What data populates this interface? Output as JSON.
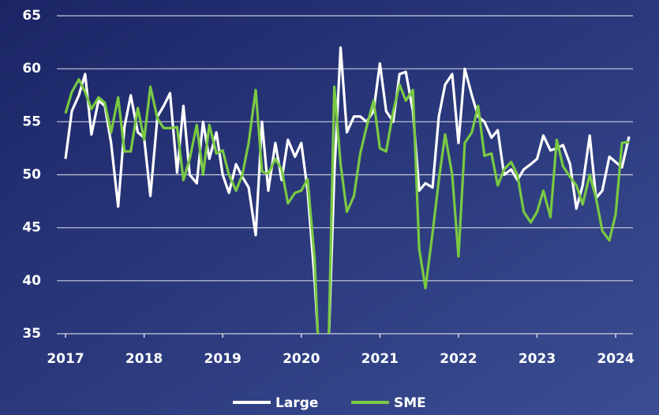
{
  "chart_data": {
    "type": "line",
    "x": [
      2017,
      2017.08,
      2017.17,
      2017.25,
      2017.33,
      2017.42,
      2017.5,
      2017.58,
      2017.67,
      2017.75,
      2017.83,
      2017.92,
      2018,
      2018.08,
      2018.17,
      2018.25,
      2018.33,
      2018.42,
      2018.5,
      2018.58,
      2018.67,
      2018.75,
      2018.83,
      2018.92,
      2019,
      2019.08,
      2019.17,
      2019.25,
      2019.33,
      2019.42,
      2019.5,
      2019.58,
      2019.67,
      2019.75,
      2019.83,
      2019.92,
      2020,
      2020.08,
      2020.17,
      2020.25,
      2020.33,
      2020.42,
      2020.5,
      2020.58,
      2020.67,
      2020.75,
      2020.83,
      2020.92,
      2021,
      2021.08,
      2021.17,
      2021.25,
      2021.33,
      2021.42,
      2021.5,
      2021.58,
      2021.67,
      2021.75,
      2021.83,
      2021.92,
      2022,
      2022.08,
      2022.17,
      2022.25,
      2022.33,
      2022.42,
      2022.5,
      2022.58,
      2022.67,
      2022.75,
      2022.83,
      2022.92,
      2023,
      2023.08,
      2023.17,
      2023.25,
      2023.33,
      2023.42,
      2023.5,
      2023.58,
      2023.67,
      2023.75,
      2023.83,
      2023.92,
      2024,
      2024.08,
      2024.17
    ],
    "series": [
      {
        "name": "Large",
        "color": "#ffffff",
        "values": [
          51.5,
          56,
          57.5,
          59.5,
          53.8,
          57,
          56.5,
          53,
          47,
          54.5,
          57.5,
          54,
          53.5,
          48,
          55.5,
          56.5,
          57.7,
          50.2,
          56.5,
          50,
          49.2,
          55,
          51.5,
          54,
          50,
          48.3,
          51,
          49.8,
          48.8,
          44.3,
          55,
          48.5,
          53,
          49.5,
          53.3,
          51.7,
          53,
          48.5,
          40,
          30,
          30,
          50,
          62,
          54,
          55.5,
          55.5,
          55,
          56,
          60.5,
          56,
          55,
          59.5,
          59.7,
          56,
          48.5,
          49.2,
          48.8,
          55.5,
          58.5,
          59.5,
          53,
          60,
          57.5,
          55.5,
          55,
          53.5,
          54.2,
          50,
          50.5,
          49.5,
          50.5,
          51,
          51.5,
          53.7,
          52.3,
          52.5,
          52.8,
          51,
          46.8,
          49,
          53.7,
          47.8,
          48.5,
          51.7,
          51.2,
          50.7,
          53.6
        ]
      },
      {
        "name": "SME",
        "color": "#7ac943",
        "values": [
          55.8,
          57.8,
          59,
          57.8,
          56.2,
          57.3,
          56.8,
          54,
          57.3,
          52.2,
          52.2,
          56.3,
          53.3,
          58.3,
          55.3,
          54.4,
          54.4,
          54.5,
          49.5,
          51.5,
          54.7,
          50,
          54.7,
          52,
          52.3,
          50,
          48.5,
          50,
          53,
          58,
          50.3,
          50.1,
          51.5,
          50.5,
          47.3,
          48.3,
          48.5,
          49.6,
          42,
          28,
          28,
          58.3,
          51,
          46.5,
          48,
          52,
          54.5,
          57,
          52.5,
          52.2,
          56,
          58.5,
          57,
          58,
          43,
          39.3,
          44.5,
          49.5,
          53.8,
          50,
          42.3,
          53,
          54,
          56.5,
          51.8,
          52,
          49,
          50.5,
          51.2,
          50,
          46.5,
          45.5,
          46.5,
          48.5,
          46,
          53.3,
          50.8,
          49.8,
          49,
          47.2,
          50,
          47.8,
          44.7,
          43.8,
          46.3,
          53,
          53.1
        ]
      }
    ],
    "xlim": [
      2017,
      2024.25
    ],
    "xticks": [
      2017,
      2018,
      2019,
      2020,
      2021,
      2022,
      2023,
      2024
    ],
    "ylim": [
      35,
      65
    ],
    "yticks": [
      35,
      40,
      45,
      50,
      55,
      60,
      65
    ],
    "grid": true,
    "legend": "bottom"
  }
}
